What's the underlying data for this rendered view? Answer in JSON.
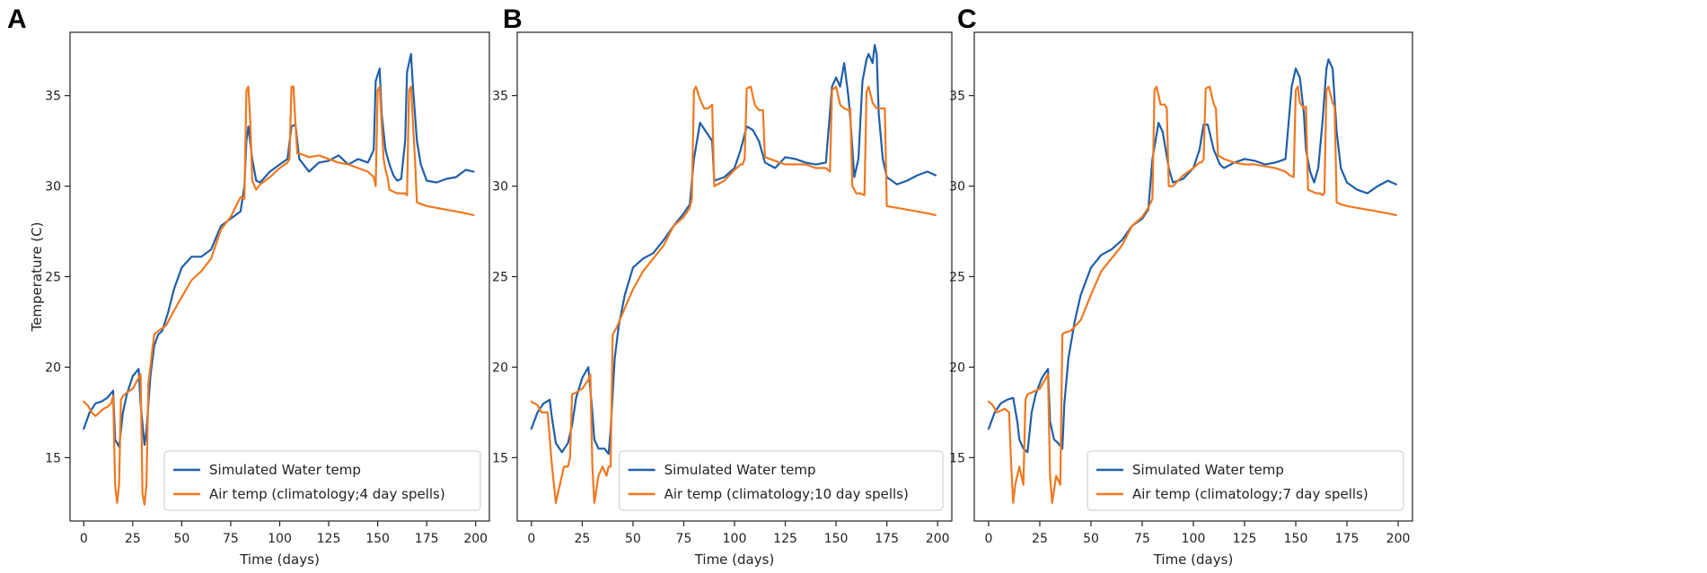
{
  "colors": {
    "water": "#1f5fa8",
    "air": "#f07820"
  },
  "chart_data": [
    {
      "panel": "A",
      "type": "line",
      "xlabel": "Time (days)",
      "ylabel": "Temperature (C)",
      "xlim": [
        -7,
        207
      ],
      "ylim": [
        11.5,
        38.5
      ],
      "xticks": [
        0,
        25,
        50,
        75,
        100,
        125,
        150,
        175,
        200
      ],
      "yticks": [
        15,
        20,
        25,
        30,
        35
      ],
      "legend": "lower-right",
      "series": [
        {
          "name": "Simulated Water temp",
          "color": "#1f5fa8",
          "x": [
            0,
            3,
            6,
            9,
            12,
            15,
            16,
            18,
            20,
            22,
            25,
            28,
            29,
            31,
            32,
            34,
            36,
            38,
            40,
            43,
            46,
            50,
            55,
            60,
            65,
            70,
            75,
            80,
            82,
            83,
            84,
            86,
            88,
            90,
            95,
            100,
            104,
            106,
            108,
            110,
            115,
            120,
            125,
            130,
            135,
            140,
            145,
            148,
            149,
            151,
            152,
            154,
            156,
            158,
            160,
            162,
            164,
            165,
            167,
            168,
            170,
            172,
            175,
            180,
            185,
            190,
            195,
            199
          ],
          "y": [
            16.6,
            17.5,
            18,
            18.1,
            18.3,
            18.7,
            16,
            15.6,
            17.5,
            18.5,
            19.5,
            19.9,
            18,
            15.7,
            16.5,
            19.5,
            21.2,
            21.8,
            22,
            23,
            24.3,
            25.5,
            26.1,
            26.1,
            26.5,
            27.8,
            28.2,
            28.6,
            30,
            32.5,
            33.3,
            31.5,
            30.3,
            30.2,
            30.8,
            31.2,
            31.5,
            33.3,
            33.4,
            31.5,
            30.8,
            31.3,
            31.4,
            31.7,
            31.2,
            31.5,
            31.3,
            32,
            35.8,
            36.5,
            34,
            32,
            31.2,
            30.6,
            30.3,
            30.4,
            32.5,
            36.3,
            37.3,
            35.5,
            32.5,
            31.2,
            30.3,
            30.2,
            30.4,
            30.5,
            30.9,
            30.8
          ]
        },
        {
          "name": "Air temp (climatology;4 day spells)",
          "color": "#f07820",
          "x": [
            0,
            2,
            4,
            6,
            8,
            10,
            12,
            14,
            15,
            16,
            17,
            18,
            19,
            20,
            22,
            25,
            28,
            29,
            30,
            31,
            32,
            33,
            34,
            35,
            36,
            38,
            42,
            48,
            55,
            60,
            65,
            70,
            75,
            80,
            82,
            83,
            84,
            85,
            86,
            88,
            90,
            95,
            100,
            104,
            105,
            106,
            107,
            108,
            109,
            110,
            115,
            120,
            125,
            130,
            135,
            140,
            145,
            148,
            149,
            150,
            151,
            152,
            153,
            154,
            155,
            156,
            160,
            164,
            165,
            166,
            167,
            168,
            169,
            170,
            175,
            180,
            185,
            190,
            195,
            199
          ],
          "y": [
            18.1,
            17.9,
            17.5,
            17.3,
            17.5,
            17.7,
            17.8,
            18,
            18.4,
            13.5,
            12.5,
            13.5,
            18.2,
            18.4,
            18.6,
            18.8,
            19.4,
            19.6,
            13,
            12.4,
            13.5,
            19.1,
            20,
            21,
            21.8,
            22,
            22.3,
            23.5,
            24.8,
            25.3,
            26,
            27.6,
            28.3,
            29.4,
            29.3,
            35.3,
            35.5,
            33.5,
            30.3,
            29.8,
            30.1,
            30.5,
            31,
            31.3,
            31.5,
            35.5,
            35.5,
            33.5,
            31.8,
            31.8,
            31.6,
            31.7,
            31.5,
            31.3,
            31.2,
            31,
            30.8,
            30.5,
            30,
            35.3,
            35.5,
            33.5,
            31.5,
            30.9,
            30.5,
            29.8,
            29.6,
            29.6,
            29.5,
            35.3,
            35.5,
            33.5,
            31.5,
            29.1,
            28.9,
            28.8,
            28.7,
            28.6,
            28.5,
            28.4
          ]
        }
      ]
    },
    {
      "panel": "B",
      "type": "line",
      "xlabel": "Time (days)",
      "ylabel": "",
      "xlim": [
        -7,
        207
      ],
      "ylim": [
        11.5,
        38.5
      ],
      "xticks": [
        0,
        25,
        50,
        75,
        100,
        125,
        150,
        175,
        200
      ],
      "yticks": [
        15,
        20,
        25,
        30,
        35
      ],
      "legend": "lower-right",
      "series": [
        {
          "name": "Simulated Water temp",
          "color": "#1f5fa8",
          "x": [
            0,
            3,
            6,
            9,
            10,
            12,
            15,
            18,
            20,
            22,
            25,
            28,
            30,
            31,
            33,
            36,
            38,
            39,
            41,
            43,
            46,
            50,
            55,
            60,
            65,
            70,
            75,
            78,
            80,
            83,
            86,
            89,
            90,
            95,
            100,
            103,
            106,
            109,
            112,
            115,
            120,
            125,
            130,
            135,
            140,
            145,
            148,
            150,
            152,
            154,
            156,
            157,
            159,
            161,
            163,
            165,
            166,
            168,
            169,
            170,
            171,
            173,
            175,
            180,
            185,
            190,
            195,
            199
          ],
          "y": [
            16.6,
            17.5,
            18,
            18.2,
            17.3,
            15.8,
            15.3,
            15.8,
            16.8,
            18.3,
            19.4,
            20,
            17.5,
            16,
            15.5,
            15.5,
            15.2,
            16.5,
            20.5,
            22.3,
            24,
            25.5,
            26,
            26.3,
            27,
            27.8,
            28.5,
            29,
            31.5,
            33.5,
            33,
            32.5,
            30.3,
            30.5,
            31,
            32,
            33.3,
            33.1,
            32.5,
            31.3,
            31,
            31.6,
            31.5,
            31.3,
            31.2,
            31.3,
            35.5,
            36,
            35.5,
            36.8,
            35,
            33.8,
            30.5,
            31.5,
            35.8,
            37,
            37.3,
            36.8,
            37.8,
            37.3,
            34,
            31.5,
            30.5,
            30.1,
            30.3,
            30.6,
            30.8,
            30.6
          ]
        },
        {
          "name": "Air temp (climatology;10 day spells)",
          "color": "#f07820",
          "x": [
            0,
            3,
            5,
            7,
            8,
            10,
            12,
            14,
            16,
            18,
            19,
            20,
            22,
            25,
            28,
            29,
            30,
            31,
            33,
            35,
            37,
            38,
            39,
            40,
            42,
            45,
            50,
            55,
            60,
            65,
            70,
            75,
            78,
            79,
            80,
            81,
            83,
            85,
            87,
            89,
            90,
            95,
            100,
            103,
            104,
            105,
            106,
            108,
            110,
            112,
            114,
            115,
            120,
            125,
            130,
            135,
            140,
            145,
            146,
            147,
            148,
            150,
            152,
            154,
            156,
            157,
            158,
            160,
            162,
            164,
            165,
            166,
            168,
            170,
            172,
            174,
            175,
            180,
            185,
            190,
            195,
            199
          ],
          "y": [
            18.1,
            17.9,
            17.5,
            17.5,
            17.5,
            14.7,
            12.5,
            13.5,
            14.5,
            14.5,
            15,
            18.5,
            18.6,
            18.8,
            19.3,
            19.6,
            14.5,
            12.5,
            14,
            14.5,
            14,
            14.5,
            14.5,
            21.8,
            22.2,
            23,
            24.3,
            25.3,
            26,
            26.7,
            27.8,
            28.3,
            28.8,
            29.3,
            35.3,
            35.5,
            34.8,
            34.3,
            34.3,
            34.5,
            30,
            30.3,
            30.9,
            31.2,
            31.2,
            31.5,
            35.4,
            35.5,
            34.5,
            34.2,
            34.2,
            31.6,
            31.4,
            31.2,
            31.2,
            31.2,
            31,
            31,
            30.9,
            30.8,
            35.3,
            35.5,
            34.5,
            34.3,
            34.2,
            34.3,
            30,
            29.6,
            29.6,
            29.5,
            35.2,
            35.5,
            34.6,
            34.3,
            34.3,
            34.3,
            28.9,
            28.8,
            28.7,
            28.6,
            28.5,
            28.4
          ]
        }
      ]
    },
    {
      "panel": "C",
      "type": "line",
      "xlabel": "Time (days)",
      "ylabel": "",
      "xlim": [
        -7,
        207
      ],
      "ylim": [
        11.5,
        38.5
      ],
      "xticks": [
        0,
        25,
        50,
        75,
        100,
        125,
        150,
        175,
        200
      ],
      "yticks": [
        15,
        20,
        25,
        30,
        35
      ],
      "legend": "lower-right",
      "series": [
        {
          "name": "Simulated Water temp",
          "color": "#1f5fa8",
          "x": [
            0,
            3,
            6,
            9,
            12,
            14,
            15,
            17,
            19,
            21,
            23,
            26,
            29,
            30,
            32,
            34,
            36,
            37,
            39,
            42,
            45,
            50,
            55,
            60,
            65,
            70,
            75,
            78,
            80,
            83,
            85,
            88,
            90,
            95,
            100,
            103,
            105,
            107,
            110,
            113,
            115,
            120,
            125,
            130,
            135,
            140,
            145,
            148,
            150,
            152,
            154,
            155,
            157,
            159,
            161,
            163,
            165,
            166,
            168,
            170,
            172,
            175,
            180,
            185,
            190,
            195,
            199
          ],
          "y": [
            16.6,
            17.5,
            18,
            18.2,
            18.3,
            17,
            16,
            15.5,
            15.3,
            17.5,
            18.5,
            19.4,
            19.9,
            17,
            16,
            15.8,
            15.5,
            18,
            20.5,
            22.5,
            24,
            25.5,
            26.2,
            26.5,
            27,
            27.8,
            28.2,
            28.7,
            31.5,
            33.5,
            33,
            31,
            30.2,
            30.4,
            31,
            32,
            33.4,
            33.4,
            32,
            31.2,
            31,
            31.3,
            31.5,
            31.4,
            31.2,
            31.3,
            31.5,
            35.5,
            36.5,
            36,
            34,
            32,
            30.8,
            30.2,
            31,
            33.5,
            36.5,
            37,
            36.5,
            33,
            31,
            30.2,
            29.8,
            29.6,
            30,
            30.3,
            30.1
          ]
        },
        {
          "name": "Air temp (climatology;7 day spells)",
          "color": "#f07820",
          "x": [
            0,
            2,
            4,
            6,
            8,
            10,
            11,
            12,
            13,
            15,
            17,
            18,
            19,
            21,
            25,
            28,
            29,
            30,
            31,
            33,
            35,
            36,
            37,
            40,
            45,
            50,
            55,
            60,
            65,
            70,
            75,
            78,
            80,
            81,
            82,
            84,
            86,
            87,
            88,
            90,
            95,
            100,
            103,
            104,
            105,
            106,
            108,
            110,
            111,
            112,
            115,
            120,
            125,
            130,
            135,
            140,
            145,
            147,
            149,
            150,
            151,
            152,
            154,
            155,
            156,
            160,
            162,
            163,
            164,
            165,
            166,
            168,
            169,
            170,
            172,
            175,
            180,
            185,
            190,
            195,
            199
          ],
          "y": [
            18.1,
            17.9,
            17.5,
            17.6,
            17.7,
            17.5,
            14.7,
            12.5,
            13.5,
            14.5,
            13.5,
            18.2,
            18.5,
            18.6,
            18.8,
            19.4,
            19.6,
            14,
            12.5,
            14,
            13.5,
            21.8,
            21.9,
            22,
            22.6,
            24,
            25.3,
            26,
            26.7,
            27.8,
            28.3,
            28.8,
            29.3,
            35.3,
            35.5,
            34.5,
            34.5,
            34.3,
            30,
            30,
            30.6,
            31,
            31.3,
            31.3,
            31.5,
            35.4,
            35.5,
            34.5,
            34.3,
            31.7,
            31.5,
            31.3,
            31.2,
            31.2,
            31.1,
            31,
            30.8,
            30.6,
            30.5,
            35.3,
            35.5,
            34.6,
            34.3,
            34.4,
            29.8,
            29.6,
            29.6,
            29.5,
            29.6,
            35.3,
            35.5,
            34.6,
            34.4,
            29.1,
            29,
            28.9,
            28.8,
            28.7,
            28.6,
            28.5,
            28.4
          ]
        }
      ]
    }
  ]
}
